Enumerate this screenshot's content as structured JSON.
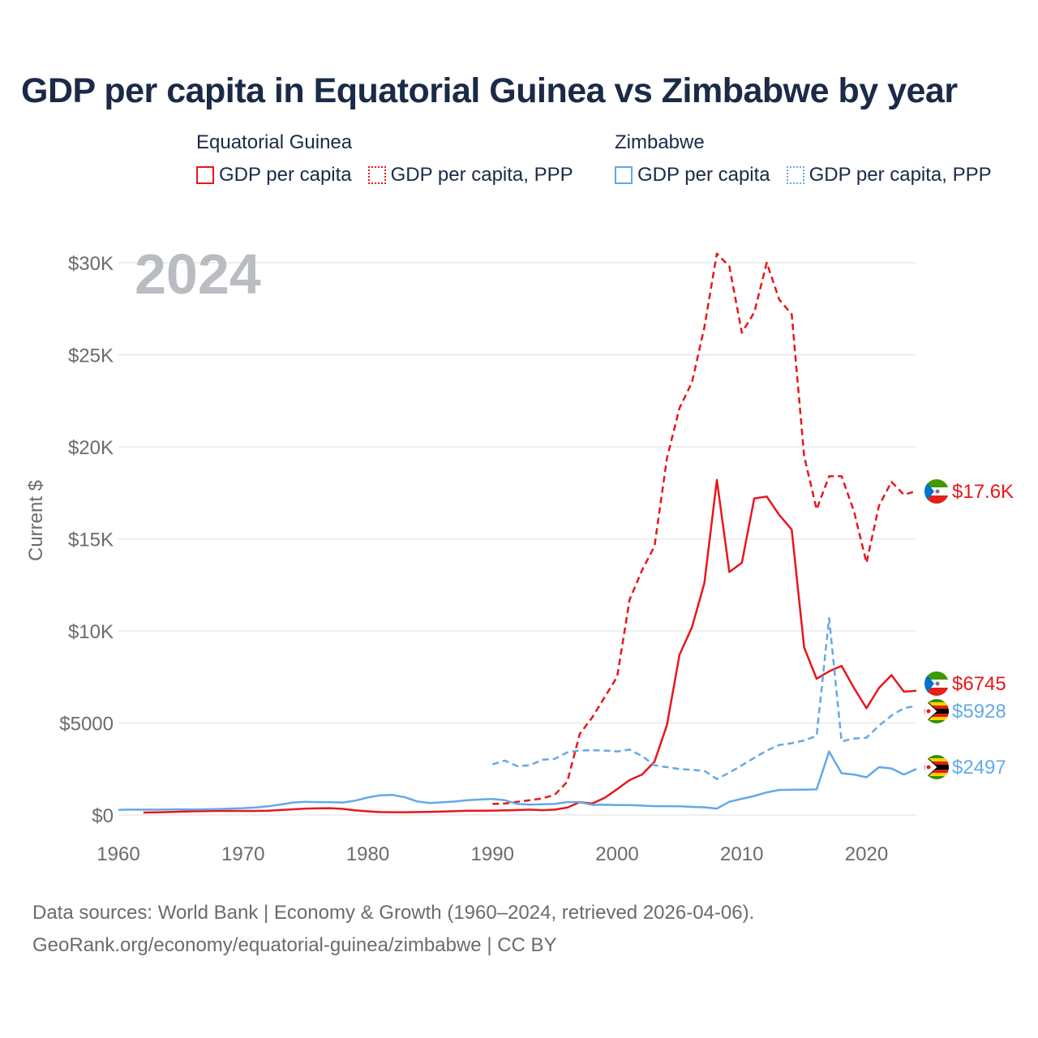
{
  "chart_data": {
    "type": "line",
    "title": "GDP per capita in Equatorial Guinea vs Zimbabwe by year",
    "year_label": "2024",
    "ylabel": "Current $",
    "xlabel": "",
    "xlim": [
      1960,
      2024
    ],
    "ylim": [
      0,
      30000
    ],
    "x_ticks": [
      1960,
      1970,
      1980,
      1990,
      2000,
      2010,
      2020
    ],
    "x_tick_labels": [
      "1960",
      "1970",
      "1980",
      "1990",
      "2000",
      "2010",
      "2020"
    ],
    "y_ticks": [
      0,
      5000,
      10000,
      15000,
      20000,
      25000,
      30000
    ],
    "y_tick_labels": [
      "$0",
      "$5000",
      "$10K",
      "$15K",
      "$20K",
      "$25K",
      "$30K"
    ],
    "grid": true,
    "colors": {
      "equatorial_guinea": "#e8161b",
      "zimbabwe": "#64a8e8"
    },
    "legend": {
      "groups": [
        {
          "name": "Equatorial Guinea",
          "items": [
            "GDP per capita",
            "GDP per capita, PPP"
          ]
        },
        {
          "name": "Zimbabwe",
          "items": [
            "GDP per capita",
            "GDP per capita, PPP"
          ]
        }
      ]
    },
    "series": [
      {
        "name": "Equatorial Guinea GDP per capita",
        "country": "Equatorial Guinea",
        "style": "solid",
        "end_label": "$6745",
        "x": [
          1962,
          1963,
          1964,
          1965,
          1966,
          1967,
          1968,
          1969,
          1970,
          1971,
          1972,
          1973,
          1974,
          1975,
          1976,
          1977,
          1978,
          1979,
          1980,
          1981,
          1982,
          1983,
          1984,
          1985,
          1986,
          1987,
          1988,
          1989,
          1990,
          1991,
          1992,
          1993,
          1994,
          1995,
          1996,
          1997,
          1998,
          1999,
          2000,
          2001,
          2002,
          2003,
          2004,
          2005,
          2006,
          2007,
          2008,
          2009,
          2010,
          2011,
          2012,
          2013,
          2014,
          2015,
          2016,
          2017,
          2018,
          2019,
          2020,
          2021,
          2022,
          2023,
          2024
        ],
        "values": [
          130,
          140,
          160,
          180,
          200,
          210,
          220,
          220,
          220,
          220,
          230,
          270,
          310,
          350,
          360,
          370,
          330,
          250,
          200,
          160,
          150,
          150,
          160,
          170,
          190,
          210,
          230,
          230,
          240,
          250,
          270,
          290,
          260,
          290,
          400,
          700,
          620,
          930,
          1400,
          1900,
          2200,
          2900,
          4900,
          8700,
          10200,
          12600,
          18200,
          13200,
          13700,
          17200,
          17300,
          16300,
          15500,
          9100,
          7400,
          7800,
          8100,
          6900,
          5800,
          6900,
          7600,
          6700,
          6745
        ]
      },
      {
        "name": "Equatorial Guinea GDP per capita, PPP",
        "country": "Equatorial Guinea",
        "style": "dashed",
        "end_label": "$17.6K",
        "x": [
          1990,
          1991,
          1992,
          1993,
          1994,
          1995,
          1996,
          1997,
          1998,
          1999,
          2000,
          2001,
          2002,
          2003,
          2004,
          2005,
          2006,
          2007,
          2008,
          2009,
          2010,
          2011,
          2012,
          2013,
          2014,
          2015,
          2016,
          2017,
          2018,
          2019,
          2020,
          2021,
          2022,
          2023,
          2024
        ],
        "values": [
          600,
          620,
          720,
          800,
          900,
          1100,
          1800,
          4400,
          5300,
          6400,
          7500,
          11700,
          13300,
          14600,
          19400,
          22100,
          23500,
          26500,
          30500,
          29800,
          26200,
          27300,
          30000,
          28000,
          27200,
          19500,
          16600,
          18400,
          18400,
          16500,
          13700,
          16800,
          18100,
          17400,
          17600
        ]
      },
      {
        "name": "Zimbabwe GDP per capita",
        "country": "Zimbabwe",
        "style": "solid",
        "end_label": "$2497",
        "x": [
          1960,
          1961,
          1962,
          1963,
          1964,
          1965,
          1966,
          1967,
          1968,
          1969,
          1970,
          1971,
          1972,
          1973,
          1974,
          1975,
          1976,
          1977,
          1978,
          1979,
          1980,
          1981,
          1982,
          1983,
          1984,
          1985,
          1986,
          1987,
          1988,
          1989,
          1990,
          1991,
          1992,
          1993,
          1994,
          1995,
          1996,
          1997,
          1998,
          1999,
          2000,
          2001,
          2002,
          2003,
          2004,
          2005,
          2006,
          2007,
          2008,
          2009,
          2010,
          2011,
          2012,
          2013,
          2014,
          2015,
          2016,
          2017,
          2018,
          2019,
          2020,
          2021,
          2022,
          2023,
          2024
        ],
        "values": [
          280,
          290,
          290,
          290,
          300,
          310,
          300,
          310,
          320,
          350,
          370,
          410,
          470,
          570,
          680,
          720,
          700,
          690,
          680,
          780,
          950,
          1070,
          1090,
          960,
          730,
          650,
          690,
          730,
          800,
          840,
          870,
          800,
          600,
          560,
          580,
          600,
          700,
          700,
          550,
          560,
          540,
          540,
          510,
          480,
          480,
          470,
          440,
          420,
          350,
          720,
          880,
          1030,
          1230,
          1360,
          1370,
          1380,
          1390,
          3450,
          2270,
          2200,
          2050,
          2600,
          2530,
          2200,
          2497
        ]
      },
      {
        "name": "Zimbabwe GDP per capita, PPP",
        "country": "Zimbabwe",
        "style": "dashed",
        "end_label": "$5928",
        "x": [
          1990,
          1991,
          1992,
          1993,
          1994,
          1995,
          1996,
          1997,
          1998,
          1999,
          2000,
          2001,
          2002,
          2003,
          2004,
          2005,
          2006,
          2007,
          2008,
          2009,
          2010,
          2011,
          2012,
          2013,
          2014,
          2015,
          2016,
          2017,
          2018,
          2019,
          2020,
          2021,
          2022,
          2023,
          2024
        ],
        "values": [
          2750,
          2950,
          2650,
          2700,
          3000,
          3050,
          3400,
          3500,
          3520,
          3500,
          3450,
          3550,
          3200,
          2700,
          2600,
          2500,
          2450,
          2400,
          1950,
          2300,
          2700,
          3100,
          3500,
          3800,
          3900,
          4050,
          4300,
          10700,
          4000,
          4150,
          4200,
          4850,
          5400,
          5800,
          5928
        ]
      }
    ]
  },
  "legend_labels": {
    "eg_group": "Equatorial Guinea",
    "zw_group": "Zimbabwe",
    "gdp": "GDP per capita",
    "ppp": "GDP per capita, PPP"
  },
  "footer": {
    "line1": "Data sources: World Bank | Economy & Growth (1960–2024, retrieved 2026-04-06).",
    "line2": "GeoRank.org/economy/equatorial-guinea/zimbabwe | CC BY"
  },
  "icons": [
    "equatorial-guinea-flag-icon",
    "zimbabwe-flag-icon"
  ]
}
